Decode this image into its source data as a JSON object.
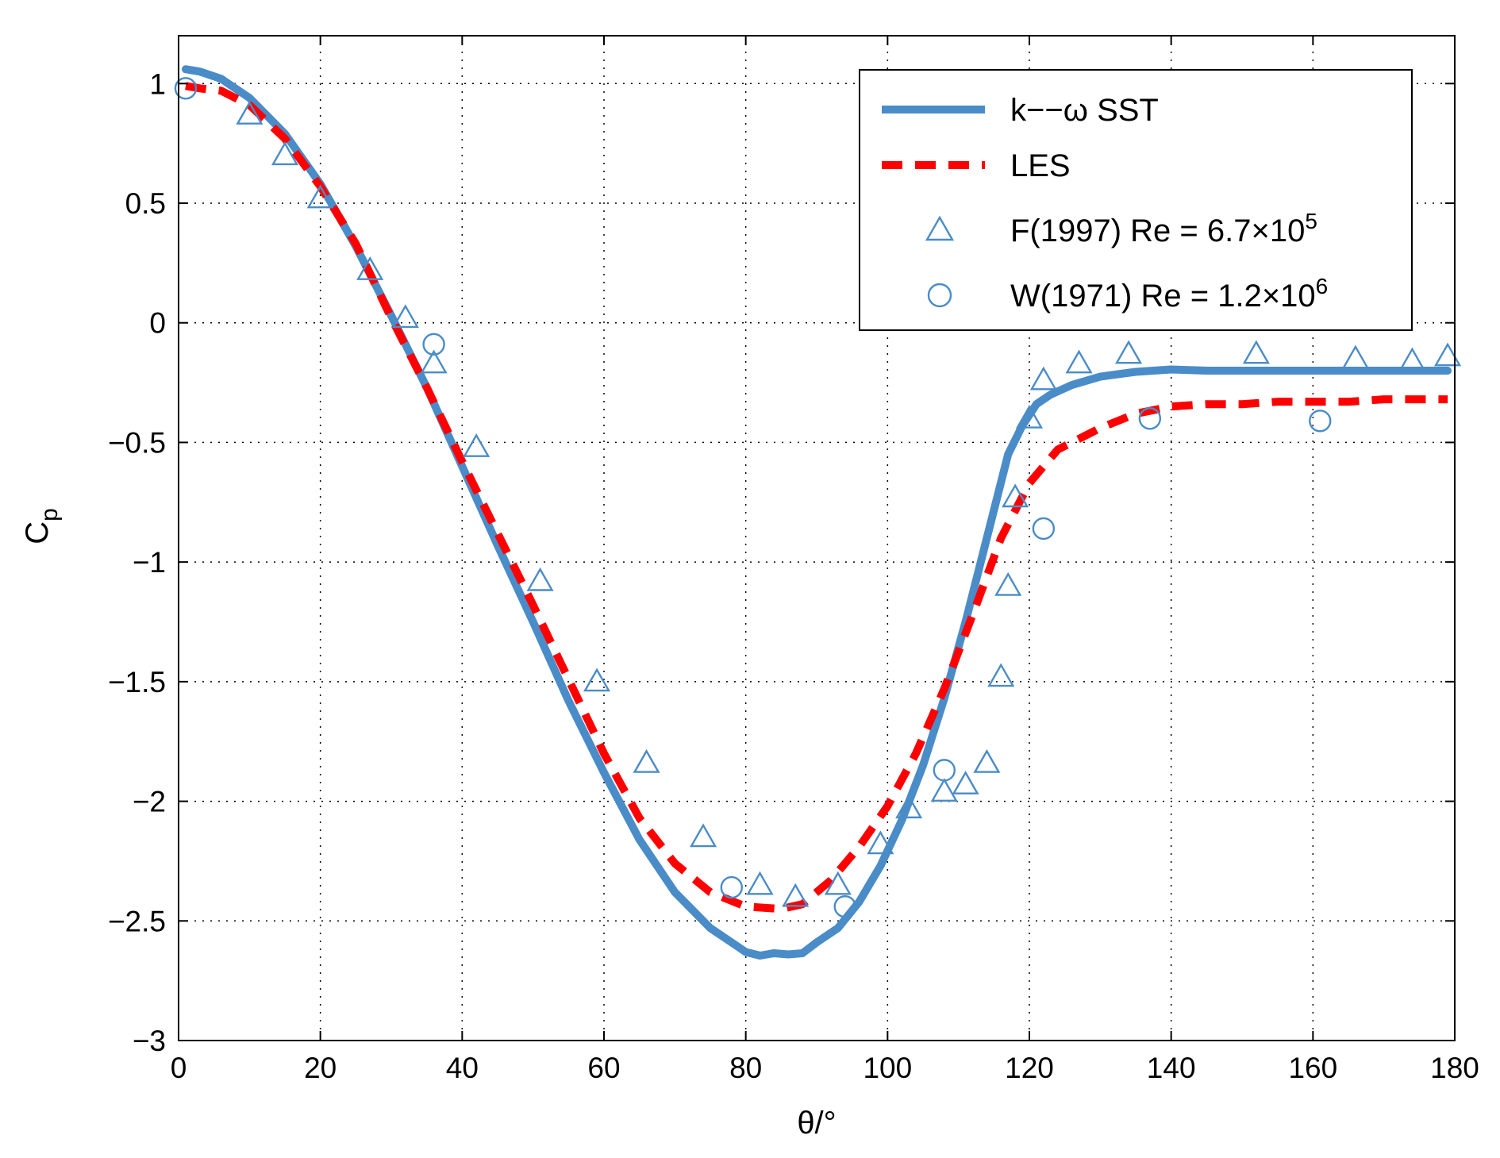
{
  "chart_data": {
    "type": "line",
    "title": "",
    "xlabel": "θ/°",
    "ylabel": "Cp",
    "ylabel_main": "C",
    "ylabel_sub": "p",
    "xlim": [
      0,
      180
    ],
    "ylim": [
      -3,
      1.2
    ],
    "grid": true,
    "grid_style": "dotted",
    "legend_location": "top-right",
    "xticks": [
      0,
      20,
      40,
      60,
      80,
      100,
      120,
      140,
      160,
      180
    ],
    "xtick_labels": [
      "0",
      "20",
      "40",
      "60",
      "80",
      "100",
      "120",
      "140",
      "160",
      "180"
    ],
    "yticks": [
      1,
      0.5,
      0,
      -0.5,
      -1,
      -1.5,
      -2,
      -2.5,
      -3
    ],
    "ytick_labels": [
      "1",
      "0.5",
      "0",
      "−0.5",
      "−1",
      "−1.5",
      "−2",
      "−2.5",
      "−3"
    ],
    "series": [
      {
        "name": "k−−ω SST",
        "style": "solid-line",
        "color": "#4a8cc8",
        "x": [
          1,
          3,
          6,
          10,
          15,
          20,
          25,
          30,
          35,
          40,
          45,
          50,
          55,
          60,
          65,
          70,
          75,
          78,
          80,
          82,
          84,
          86,
          88,
          90,
          93,
          96,
          99,
          102,
          105,
          108,
          111,
          114,
          117,
          119,
          121,
          123,
          126,
          130,
          135,
          140,
          145,
          150,
          160,
          170,
          179
        ],
        "y": [
          1.06,
          1.05,
          1.02,
          0.94,
          0.79,
          0.58,
          0.32,
          0.03,
          -0.27,
          -0.6,
          -0.93,
          -1.25,
          -1.58,
          -1.88,
          -2.16,
          -2.38,
          -2.53,
          -2.59,
          -2.63,
          -2.645,
          -2.635,
          -2.64,
          -2.635,
          -2.59,
          -2.53,
          -2.42,
          -2.27,
          -2.08,
          -1.85,
          -1.57,
          -1.25,
          -0.9,
          -0.55,
          -0.43,
          -0.34,
          -0.3,
          -0.26,
          -0.225,
          -0.205,
          -0.195,
          -0.2,
          -0.2,
          -0.2,
          -0.2,
          -0.2
        ]
      },
      {
        "name": "LES",
        "style": "dashed-line",
        "color": "#ff0000",
        "x": [
          1,
          3,
          6,
          10,
          15,
          20,
          25,
          30,
          35,
          40,
          45,
          50,
          55,
          60,
          65,
          70,
          75,
          80,
          85,
          88,
          92,
          96,
          100,
          104,
          108,
          112,
          116,
          120,
          124,
          128,
          130,
          135,
          140,
          145,
          150,
          155,
          160,
          165,
          170,
          175,
          179
        ],
        "y": [
          0.99,
          0.98,
          0.97,
          0.91,
          0.77,
          0.57,
          0.33,
          0.02,
          -0.27,
          -0.58,
          -0.88,
          -1.18,
          -1.49,
          -1.8,
          -2.07,
          -2.26,
          -2.38,
          -2.44,
          -2.45,
          -2.43,
          -2.33,
          -2.19,
          -2.02,
          -1.8,
          -1.53,
          -1.22,
          -0.9,
          -0.67,
          -0.53,
          -0.47,
          -0.44,
          -0.38,
          -0.35,
          -0.34,
          -0.34,
          -0.33,
          -0.33,
          -0.33,
          -0.32,
          -0.32,
          -0.32
        ]
      },
      {
        "name": "F(1997) Re = 6.7×10",
        "name_exponent": "5",
        "style": "triangle-markers",
        "color": "#4a8cc8",
        "x": [
          10,
          15,
          20,
          27,
          32,
          36,
          42,
          51,
          59,
          66,
          74,
          82,
          87,
          93,
          99,
          103,
          108,
          111,
          114,
          116,
          117,
          118,
          120,
          122,
          127,
          134,
          152,
          166,
          174,
          179
        ],
        "y": [
          0.87,
          0.7,
          0.52,
          0.22,
          0.02,
          -0.17,
          -0.52,
          -1.08,
          -1.5,
          -1.84,
          -2.15,
          -2.35,
          -2.4,
          -2.35,
          -2.18,
          -2.03,
          -1.96,
          -1.93,
          -1.84,
          -1.48,
          -1.1,
          -0.73,
          -0.4,
          -0.24,
          -0.17,
          -0.13,
          -0.13,
          -0.15,
          -0.16,
          -0.14
        ]
      },
      {
        "name": "W(1971) Re = 1.2×10",
        "name_exponent": "6",
        "style": "circle-markers",
        "color": "#4a8cc8",
        "x": [
          1,
          36,
          78,
          94,
          108,
          122,
          137,
          161
        ],
        "y": [
          0.98,
          -0.09,
          -2.36,
          -2.44,
          -1.87,
          -0.86,
          -0.4,
          -0.41
        ]
      }
    ]
  }
}
